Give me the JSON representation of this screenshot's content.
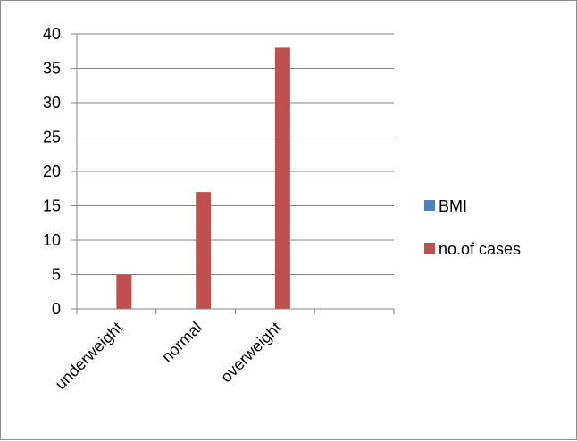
{
  "chart_data": {
    "type": "bar",
    "categories": [
      "underweight",
      "normal",
      "overweight",
      ""
    ],
    "series": [
      {
        "name": "BMI",
        "values": [
          null,
          null,
          null,
          null
        ],
        "color": "#4f81bd"
      },
      {
        "name": "no.of cases",
        "values": [
          5,
          17,
          38,
          null
        ],
        "color": "#c0504d"
      }
    ],
    "title": "",
    "xlabel": "",
    "ylabel": "",
    "ylim": [
      0,
      40
    ],
    "yticks": [
      0,
      5,
      10,
      15,
      20,
      25,
      30,
      35,
      40
    ],
    "grid": true,
    "legend_position": "right"
  }
}
